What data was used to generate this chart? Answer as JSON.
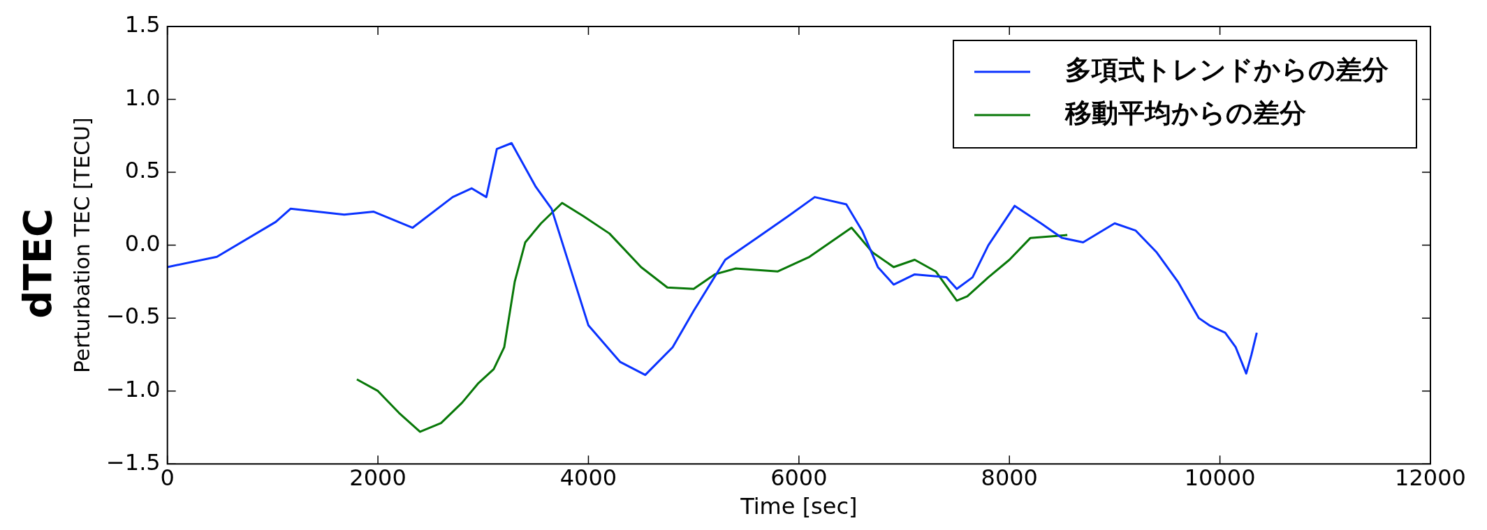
{
  "chart_data": {
    "type": "line",
    "xlabel": "Time [sec]",
    "ylabel": "Perturbation TEC [TECU]",
    "annotations": [
      "dTEC"
    ],
    "xlim": [
      0,
      12000
    ],
    "xticks": [
      0,
      2000,
      4000,
      6000,
      8000,
      10000,
      12000
    ],
    "ylim": [
      -1.5,
      1.5
    ],
    "yticks": [
      {
        "value": -1.5,
        "label": "−1.5"
      },
      {
        "value": -1.0,
        "label": "−1.0"
      },
      {
        "value": -0.5,
        "label": "−0.5"
      },
      {
        "value": 0,
        "label": "0.0"
      },
      {
        "value": 0.5,
        "label": "0.5"
      },
      {
        "value": 1.0,
        "label": "1.0"
      },
      {
        "value": 1.5,
        "label": "1.5"
      }
    ],
    "grid": false,
    "legend": "top right",
    "marker": "none",
    "line_style": "solid",
    "series": [
      {
        "name": "多項式トレンドからの差分",
        "color": "#0a32ff",
        "x": [
          0,
          470,
          1030,
          1170,
          1680,
          1960,
          2330,
          2710,
          2890,
          3030,
          3130,
          3270,
          3500,
          3650,
          4000,
          4300,
          4540,
          4800,
          5000,
          5300,
          5600,
          5900,
          6150,
          6450,
          6600,
          6750,
          6900,
          7100,
          7400,
          7500,
          7650,
          7800,
          8050,
          8300,
          8500,
          8700,
          9000,
          9200,
          9400,
          9600,
          9800,
          9900,
          10050,
          10150,
          10250,
          10300,
          10350
        ],
        "values": [
          -0.15,
          -0.08,
          0.16,
          0.25,
          0.21,
          0.23,
          0.12,
          0.33,
          0.39,
          0.33,
          0.66,
          0.7,
          0.4,
          0.25,
          -0.55,
          -0.8,
          -0.89,
          -0.7,
          -0.45,
          -0.1,
          0.05,
          0.2,
          0.33,
          0.28,
          0.1,
          -0.15,
          -0.27,
          -0.2,
          -0.22,
          -0.3,
          -0.22,
          0.0,
          0.27,
          0.15,
          0.05,
          0.02,
          0.15,
          0.1,
          -0.05,
          -0.25,
          -0.5,
          -0.55,
          -0.6,
          -0.7,
          -0.88,
          -0.75,
          -0.6
        ]
      },
      {
        "name": "移動平均からの差分",
        "color": "#087808",
        "x": [
          1800,
          2000,
          2200,
          2400,
          2600,
          2800,
          2950,
          3100,
          3200,
          3300,
          3400,
          3550,
          3750,
          3950,
          4200,
          4500,
          4750,
          5000,
          5200,
          5400,
          5800,
          6100,
          6500,
          6700,
          6900,
          7100,
          7300,
          7500,
          7600,
          7800,
          8000,
          8200,
          8550
        ],
        "values": [
          -0.92,
          -1.0,
          -1.15,
          -1.28,
          -1.22,
          -1.08,
          -0.95,
          -0.85,
          -0.7,
          -0.25,
          0.02,
          0.15,
          0.29,
          0.2,
          0.08,
          -0.15,
          -0.29,
          -0.3,
          -0.2,
          -0.16,
          -0.18,
          -0.08,
          0.12,
          -0.05,
          -0.15,
          -0.1,
          -0.18,
          -0.38,
          -0.35,
          -0.22,
          -0.1,
          0.05,
          0.07
        ]
      }
    ]
  }
}
